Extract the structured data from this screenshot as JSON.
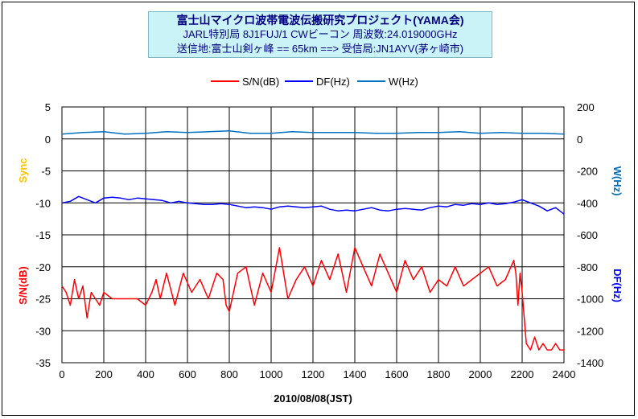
{
  "title": {
    "line1": "富士山マイクロ波帯電波伝搬研究プロジェクト(YAMA会)",
    "line2": "JARL特別局 8J1FUJ/1 CWビーコン 周波数:24.019000GHz",
    "line3": "送信地:富士山剣ヶ峰 == 65km ==> 受信局:JN1AYV(茅ヶ崎市)"
  },
  "chart_data": {
    "type": "line",
    "xlabel": "2010/08/08(JST)",
    "xlim": [
      0,
      2400
    ],
    "x_ticks": [
      "0",
      "200",
      "400",
      "600",
      "800",
      "1000",
      "1200",
      "1400",
      "1600",
      "1800",
      "2000",
      "2200",
      "2400"
    ],
    "left_axis": {
      "ylim": [
        -35,
        5
      ],
      "ticks": [
        "5",
        "0",
        "-5",
        "-10",
        "-15",
        "-20",
        "-25",
        "-30",
        "-35"
      ],
      "labels": [
        {
          "text": "Sync",
          "color": "#ffc000"
        },
        {
          "text": "S/N(dB)",
          "color": "#ff0000"
        }
      ]
    },
    "right_axis": {
      "ylim": [
        -1400,
        200
      ],
      "ticks": [
        "200",
        "0",
        "-200",
        "-400",
        "-600",
        "-800",
        "-1000",
        "-1200",
        "-1400"
      ],
      "labels": [
        {
          "text": "W(Hz)",
          "color": "#0070c0"
        },
        {
          "text": "DF(Hz)",
          "color": "#0000ff"
        }
      ]
    },
    "grid": true,
    "legend_position": "top",
    "series": [
      {
        "name": "S/N(dB)",
        "color": "#ff0000",
        "axis": "left",
        "x": [
          0,
          20,
          40,
          60,
          80,
          100,
          120,
          140,
          160,
          180,
          200,
          240,
          280,
          320,
          360,
          400,
          430,
          450,
          470,
          500,
          540,
          580,
          620,
          660,
          700,
          740,
          770,
          785,
          800,
          840,
          880,
          920,
          960,
          1000,
          1040,
          1080,
          1120,
          1160,
          1200,
          1240,
          1280,
          1320,
          1360,
          1400,
          1440,
          1480,
          1520,
          1560,
          1600,
          1640,
          1680,
          1720,
          1760,
          1800,
          1840,
          1880,
          1920,
          1960,
          2000,
          2040,
          2080,
          2120,
          2160,
          2170,
          2180,
          2190,
          2200,
          2220,
          2240,
          2260,
          2280,
          2300,
          2320,
          2340,
          2360,
          2380,
          2400
        ],
        "y": [
          -23,
          -24,
          -26,
          -22,
          -25,
          -23,
          -28,
          -24,
          -25,
          -26,
          -24,
          -25,
          -25,
          -25,
          -25,
          -26,
          -24,
          -22,
          -25,
          -21,
          -26,
          -21,
          -24,
          -22,
          -25,
          -21,
          -22,
          -26,
          -27,
          -21,
          -20,
          -26,
          -21,
          -24,
          -17,
          -25,
          -22,
          -20,
          -23,
          -19,
          -22,
          -18,
          -24,
          -17,
          -20,
          -23,
          -18,
          -21,
          -24,
          -19,
          -22,
          -20,
          -24,
          -22,
          -23,
          -20,
          -23,
          -22,
          -21,
          -20,
          -23,
          -22,
          -19,
          -21,
          -26,
          -21,
          -24,
          -32,
          -33,
          -31,
          -33,
          -32,
          -33,
          -33,
          -32,
          -33,
          -33
        ]
      },
      {
        "name": "DF(Hz)",
        "color": "#0000ff",
        "axis": "right",
        "x": [
          0,
          40,
          80,
          120,
          160,
          200,
          240,
          280,
          320,
          360,
          400,
          440,
          480,
          520,
          560,
          600,
          640,
          680,
          720,
          760,
          800,
          840,
          880,
          920,
          960,
          1000,
          1040,
          1080,
          1120,
          1160,
          1200,
          1240,
          1280,
          1320,
          1360,
          1400,
          1440,
          1480,
          1520,
          1560,
          1600,
          1640,
          1680,
          1720,
          1760,
          1800,
          1840,
          1880,
          1920,
          1960,
          2000,
          2040,
          2080,
          2120,
          2160,
          2200,
          2240,
          2280,
          2320,
          2360,
          2400
        ],
        "y": [
          -400,
          -390,
          -360,
          -380,
          -400,
          -370,
          -365,
          -370,
          -380,
          -370,
          -375,
          -380,
          -385,
          -400,
          -390,
          -400,
          -405,
          -410,
          -410,
          -405,
          -410,
          -420,
          -430,
          -425,
          -430,
          -440,
          -425,
          -420,
          -425,
          -430,
          -425,
          -420,
          -440,
          -450,
          -445,
          -450,
          -440,
          -430,
          -445,
          -450,
          -440,
          -435,
          -440,
          -445,
          -430,
          -420,
          -425,
          -410,
          -415,
          -405,
          -410,
          -400,
          -410,
          -405,
          -395,
          -380,
          -400,
          -420,
          -450,
          -430,
          -470
        ]
      },
      {
        "name": "W(Hz)",
        "color": "#0070c0",
        "axis": "right",
        "x": [
          0,
          100,
          200,
          300,
          400,
          500,
          600,
          700,
          800,
          900,
          1000,
          1100,
          1200,
          1300,
          1400,
          1500,
          1600,
          1700,
          1800,
          1900,
          2000,
          2100,
          2200,
          2300,
          2400
        ],
        "y": [
          30,
          40,
          45,
          30,
          35,
          45,
          40,
          45,
          50,
          35,
          35,
          45,
          40,
          40,
          40,
          35,
          35,
          40,
          40,
          45,
          35,
          40,
          35,
          35,
          30
        ]
      }
    ]
  }
}
